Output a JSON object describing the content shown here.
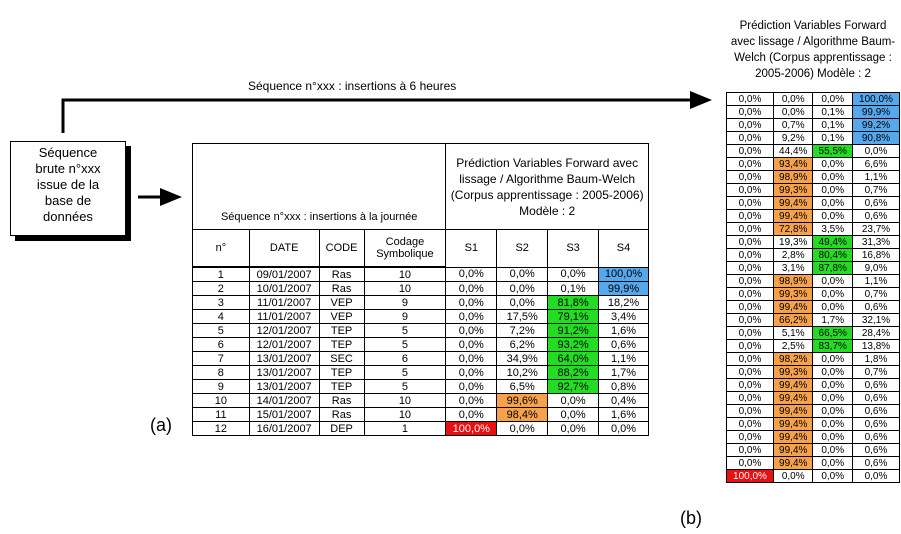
{
  "top_label": "Séquence n°xxx : insertions à 6 heures",
  "source_box": [
    "Séquence",
    "brute n°xxx",
    "issue de la",
    "base de",
    "données"
  ],
  "label_a": "(a)",
  "label_b": "(b)",
  "table_a": {
    "title_left": "Séquence n°xxx : insertions à la journée",
    "title_right": "Prédiction Variables Forward avec lissage / Algorithme Baum-Welch (Corpus apprentissage : 2005-2006) Modèle : 2",
    "headers": [
      "n°",
      "DATE",
      "CODE",
      "Codage Symbolique",
      "S1",
      "S2",
      "S3",
      "S4"
    ],
    "rows": [
      [
        "1",
        "09/01/2007",
        "Ras",
        "10",
        "0,0%",
        "0,0%",
        "0,0%",
        "100,0%"
      ],
      [
        "2",
        "10/01/2007",
        "Ras",
        "10",
        "0,0%",
        "0,0%",
        "0,1%",
        "99,9%"
      ],
      [
        "3",
        "11/01/2007",
        "VEP",
        "9",
        "0,0%",
        "0,0%",
        "81,8%",
        "18,2%"
      ],
      [
        "4",
        "11/01/2007",
        "VEP",
        "9",
        "0,0%",
        "17,5%",
        "79,1%",
        "3,4%"
      ],
      [
        "5",
        "12/01/2007",
        "TEP",
        "5",
        "0,0%",
        "7,2%",
        "91,2%",
        "1,6%"
      ],
      [
        "6",
        "12/01/2007",
        "TEP",
        "5",
        "0,0%",
        "6,2%",
        "93,2%",
        "0,6%"
      ],
      [
        "7",
        "13/01/2007",
        "SEC",
        "6",
        "0,0%",
        "34,9%",
        "64,0%",
        "1,1%"
      ],
      [
        "8",
        "13/01/2007",
        "TEP",
        "5",
        "0,0%",
        "10,2%",
        "88,2%",
        "1,7%"
      ],
      [
        "9",
        "13/01/2007",
        "TEP",
        "5",
        "0,0%",
        "6,5%",
        "92,7%",
        "0,8%"
      ],
      [
        "10",
        "14/01/2007",
        "Ras",
        "10",
        "0,0%",
        "99,6%",
        "0,0%",
        "0,4%"
      ],
      [
        "11",
        "15/01/2007",
        "Ras",
        "10",
        "0,0%",
        "98,4%",
        "0,0%",
        "1,6%"
      ],
      [
        "12",
        "16/01/2007",
        "DEP",
        "1",
        "100,0%",
        "0,0%",
        "0,0%",
        "0,0%"
      ]
    ],
    "highlight_col": [
      7,
      7,
      6,
      6,
      6,
      6,
      6,
      6,
      6,
      5,
      5,
      4
    ]
  },
  "table_b": {
    "title": "Prédiction Variables Forward avec lissage / Algorithme Baum-Welch (Corpus apprentissage : 2005-2006) Modèle : 2",
    "rows": [
      [
        "0,0%",
        "0,0%",
        "0,0%",
        "100,0%"
      ],
      [
        "0,0%",
        "0,0%",
        "0,1%",
        "99,9%"
      ],
      [
        "0,0%",
        "0,7%",
        "0,1%",
        "99,2%"
      ],
      [
        "0,0%",
        "9,2%",
        "0,1%",
        "90,8%"
      ],
      [
        "0,0%",
        "44,4%",
        "55,5%",
        "0,0%"
      ],
      [
        "0,0%",
        "93,4%",
        "0,0%",
        "6,6%"
      ],
      [
        "0,0%",
        "98,9%",
        "0,0%",
        "1,1%"
      ],
      [
        "0,0%",
        "99,3%",
        "0,0%",
        "0,7%"
      ],
      [
        "0,0%",
        "99,4%",
        "0,0%",
        "0,6%"
      ],
      [
        "0,0%",
        "99,4%",
        "0,0%",
        "0,6%"
      ],
      [
        "0,0%",
        "72,8%",
        "3,5%",
        "23,7%"
      ],
      [
        "0,0%",
        "19,3%",
        "49,4%",
        "31,3%"
      ],
      [
        "0,0%",
        "2,8%",
        "80,4%",
        "16,8%"
      ],
      [
        "0,0%",
        "3,1%",
        "87,8%",
        "9,0%"
      ],
      [
        "0,0%",
        "98,9%",
        "0,0%",
        "1,1%"
      ],
      [
        "0,0%",
        "99,3%",
        "0,0%",
        "0,7%"
      ],
      [
        "0,0%",
        "99,4%",
        "0,0%",
        "0,6%"
      ],
      [
        "0,0%",
        "66,2%",
        "1,7%",
        "32,1%"
      ],
      [
        "0,0%",
        "5,1%",
        "66,5%",
        "28,4%"
      ],
      [
        "0,0%",
        "2,5%",
        "83,7%",
        "13,8%"
      ],
      [
        "0,0%",
        "98,2%",
        "0,0%",
        "1,8%"
      ],
      [
        "0,0%",
        "99,3%",
        "0,0%",
        "0,7%"
      ],
      [
        "0,0%",
        "99,4%",
        "0,0%",
        "0,6%"
      ],
      [
        "0,0%",
        "99,4%",
        "0,0%",
        "0,6%"
      ],
      [
        "0,0%",
        "99,4%",
        "0,0%",
        "0,6%"
      ],
      [
        "0,0%",
        "99,4%",
        "0,0%",
        "0,6%"
      ],
      [
        "0,0%",
        "99,4%",
        "0,0%",
        "0,6%"
      ],
      [
        "0,0%",
        "99,4%",
        "0,0%",
        "0,6%"
      ],
      [
        "0,0%",
        "99,4%",
        "0,0%",
        "0,6%"
      ],
      [
        "100,0%",
        "0,0%",
        "0,0%",
        "0,0%"
      ]
    ],
    "highlight_col": [
      3,
      3,
      3,
      3,
      2,
      1,
      1,
      1,
      1,
      1,
      1,
      2,
      2,
      2,
      1,
      1,
      1,
      1,
      2,
      2,
      1,
      1,
      1,
      1,
      1,
      1,
      1,
      1,
      1,
      0
    ]
  },
  "state_colors": {
    "S1": "#e81010",
    "S2": "#f7a24b",
    "S3": "#22dd22",
    "S4": "#56a8ec"
  }
}
